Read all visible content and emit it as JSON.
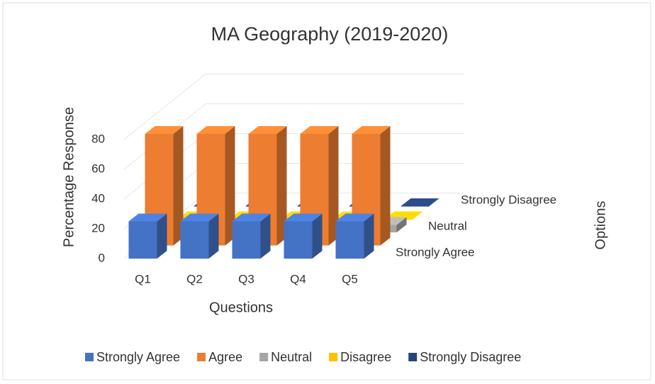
{
  "chart_data": {
    "type": "bar3d",
    "title": "MA Geography (2019-2020)",
    "x_label": "Questions",
    "y_label": "Percentage Response",
    "z_label": "Options",
    "categories": [
      "Q1",
      "Q2",
      "Q3",
      "Q4",
      "Q5"
    ],
    "depth_labels": [
      "Strongly Agree",
      null,
      "Neutral",
      null,
      "Strongly Disagree"
    ],
    "series": [
      {
        "name": "Strongly Agree",
        "color": "#4472c4",
        "values": [
          25,
          25,
          25,
          25,
          25
        ]
      },
      {
        "name": "Agree",
        "color": "#ed7d31",
        "values": [
          75,
          75,
          75,
          75,
          75
        ]
      },
      {
        "name": "Neutral",
        "color": "#a5a5a5",
        "values": [
          5,
          5,
          5,
          5,
          5
        ]
      },
      {
        "name": "Disagree",
        "color": "#ffc000",
        "values": [
          0,
          0,
          0,
          0,
          0
        ]
      },
      {
        "name": "Strongly Disagree",
        "color": "#264478",
        "values": [
          0,
          0,
          0,
          0,
          0
        ]
      }
    ],
    "ylim": [
      0,
      80
    ],
    "yticks": [
      0,
      20,
      40,
      60,
      80
    ],
    "grid": true,
    "legend": "bottom"
  }
}
